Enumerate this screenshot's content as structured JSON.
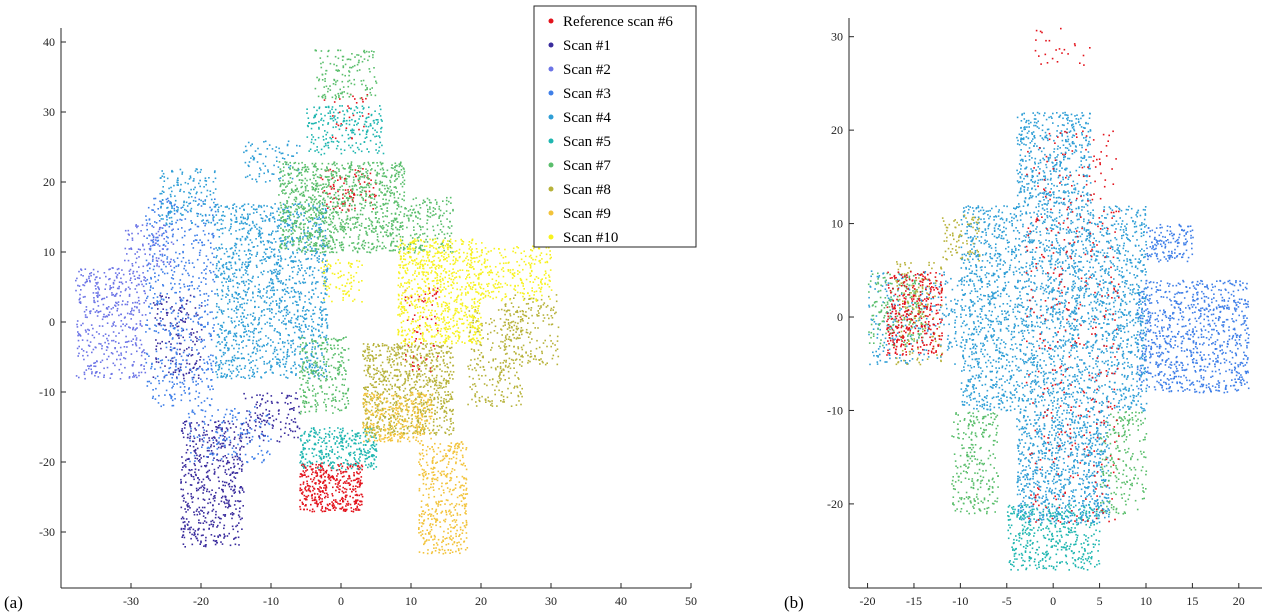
{
  "panels": {
    "a": {
      "label": "(a)"
    },
    "b": {
      "label": "(b)"
    }
  },
  "colors": {
    "reference": "#e3131c",
    "scan1": "#3a2c9d",
    "scan2": "#6c74e6",
    "scan3": "#3f7fe8",
    "scan4": "#2f9ed6",
    "scan5": "#1fb6b0",
    "scan7": "#5abe6c",
    "scan8": "#b7b23a",
    "scan9": "#f2c33a",
    "scan10": "#f7f21e"
  },
  "chart_data": [
    {
      "type": "scatter",
      "panel": "(a)",
      "title": "",
      "xlabel": "",
      "ylabel": "",
      "xlim": [
        -40,
        50
      ],
      "ylim": [
        -38,
        42
      ],
      "xticks": [
        -30,
        -20,
        -10,
        0,
        10,
        20,
        30,
        40,
        50
      ],
      "yticks": [
        -30,
        -20,
        -10,
        0,
        10,
        20,
        30,
        40
      ],
      "legend_position": "top-right",
      "legend": [
        "Reference scan #6",
        "Scan #1",
        "Scan #2",
        "Scan #3",
        "Scan #4",
        "Scan #5",
        "Scan #7",
        "Scan #8",
        "Scan #9",
        "Scan #10"
      ],
      "series": [
        {
          "name": "Reference scan #6",
          "color_key": "reference",
          "clusters": [
            {
              "x": [
                -6,
                3
              ],
              "y": [
                -27,
                -20
              ],
              "n": 420
            },
            {
              "x": [
                -3,
                5
              ],
              "y": [
                16,
                22
              ],
              "n": 90
            },
            {
              "x": [
                9,
                14
              ],
              "y": [
                -7,
                5
              ],
              "n": 70
            },
            {
              "x": [
                -3,
                4
              ],
              "y": [
                26,
                33
              ],
              "n": 30
            }
          ]
        },
        {
          "name": "Scan #1",
          "color_key": "scan1",
          "clusters": [
            {
              "x": [
                -23,
                -14
              ],
              "y": [
                -32,
                -14
              ],
              "n": 520
            },
            {
              "x": [
                -14,
                -6
              ],
              "y": [
                -17,
                -10
              ],
              "n": 120
            },
            {
              "x": [
                -27,
                -20
              ],
              "y": [
                -8,
                4
              ],
              "n": 160
            }
          ]
        },
        {
          "name": "Scan #2",
          "color_key": "scan2",
          "clusters": [
            {
              "x": [
                -38,
                -28
              ],
              "y": [
                -8,
                8
              ],
              "n": 420
            },
            {
              "x": [
                -31,
                -24
              ],
              "y": [
                8,
                14
              ],
              "n": 100
            }
          ]
        },
        {
          "name": "Scan #3",
          "color_key": "scan3",
          "clusters": [
            {
              "x": [
                -28,
                -18
              ],
              "y": [
                -12,
                18
              ],
              "n": 560
            },
            {
              "x": [
                -22,
                -10
              ],
              "y": [
                -20,
                -12
              ],
              "n": 140
            }
          ]
        },
        {
          "name": "Scan #4",
          "color_key": "scan4",
          "clusters": [
            {
              "x": [
                -18,
                -2
              ],
              "y": [
                -8,
                17
              ],
              "n": 1400
            },
            {
              "x": [
                -26,
                -18
              ],
              "y": [
                14,
                22
              ],
              "n": 160
            },
            {
              "x": [
                -14,
                -6
              ],
              "y": [
                20,
                26
              ],
              "n": 80
            }
          ]
        },
        {
          "name": "Scan #5",
          "color_key": "scan5",
          "clusters": [
            {
              "x": [
                -6,
                5
              ],
              "y": [
                -21,
                -15
              ],
              "n": 330
            },
            {
              "x": [
                -5,
                6
              ],
              "y": [
                24,
                31
              ],
              "n": 220
            }
          ]
        },
        {
          "name": "Scan #7",
          "color_key": "scan7",
          "clusters": [
            {
              "x": [
                -9,
                9
              ],
              "y": [
                10,
                23
              ],
              "n": 1100
            },
            {
              "x": [
                -4,
                5
              ],
              "y": [
                32,
                39
              ],
              "n": 140
            },
            {
              "x": [
                -6,
                1
              ],
              "y": [
                -13,
                -2
              ],
              "n": 260
            },
            {
              "x": [
                9,
                16
              ],
              "y": [
                10,
                18
              ],
              "n": 160
            }
          ]
        },
        {
          "name": "Scan #8",
          "color_key": "scan8",
          "clusters": [
            {
              "x": [
                3,
                16
              ],
              "y": [
                -16,
                -3
              ],
              "n": 820
            },
            {
              "x": [
                18,
                26
              ],
              "y": [
                -12,
                2
              ],
              "n": 240
            },
            {
              "x": [
                23,
                31
              ],
              "y": [
                -6,
                4
              ],
              "n": 180
            }
          ]
        },
        {
          "name": "Scan #9",
          "color_key": "scan9",
          "clusters": [
            {
              "x": [
                3,
                13
              ],
              "y": [
                -17,
                -10
              ],
              "n": 320
            },
            {
              "x": [
                11,
                18
              ],
              "y": [
                -33,
                -17
              ],
              "n": 420
            }
          ]
        },
        {
          "name": "Scan #10",
          "color_key": "scan10",
          "clusters": [
            {
              "x": [
                8,
                20
              ],
              "y": [
                -3,
                12
              ],
              "n": 820
            },
            {
              "x": [
                20,
                30
              ],
              "y": [
                3,
                11
              ],
              "n": 220
            },
            {
              "x": [
                -3,
                3
              ],
              "y": [
                3,
                9
              ],
              "n": 80
            }
          ]
        }
      ]
    },
    {
      "type": "scatter",
      "panel": "(b)",
      "title": "",
      "xlabel": "",
      "ylabel": "",
      "xlim": [
        -22,
        22.5
      ],
      "ylim": [
        -29,
        32
      ],
      "xticks": [
        -20,
        -15,
        -10,
        -5,
        0,
        5,
        10,
        15,
        20
      ],
      "yticks": [
        -20,
        -10,
        0,
        10,
        20,
        30
      ],
      "series": [
        {
          "name": "Scan #3",
          "color_key": "scan3",
          "clusters": [
            {
              "x": [
                9,
                21
              ],
              "y": [
                -8,
                4
              ],
              "n": 900
            },
            {
              "x": [
                10,
                15
              ],
              "y": [
                6,
                10
              ],
              "n": 140
            }
          ]
        },
        {
          "name": "Scan #4",
          "color_key": "scan4",
          "clusters": [
            {
              "x": [
                -10,
                10
              ],
              "y": [
                -10,
                12
              ],
              "n": 2600
            },
            {
              "x": [
                -4,
                6
              ],
              "y": [
                -22,
                -10
              ],
              "n": 900
            },
            {
              "x": [
                -4,
                4
              ],
              "y": [
                12,
                22
              ],
              "n": 500
            },
            {
              "x": [
                -20,
                -10
              ],
              "y": [
                -5,
                5
              ],
              "n": 260
            }
          ]
        },
        {
          "name": "Scan #5",
          "color_key": "scan5",
          "clusters": [
            {
              "x": [
                -5,
                5
              ],
              "y": [
                -27,
                -20
              ],
              "n": 420
            }
          ]
        },
        {
          "name": "Scan #7",
          "color_key": "scan7",
          "clusters": [
            {
              "x": [
                -11,
                -6
              ],
              "y": [
                -21,
                -10
              ],
              "n": 260
            },
            {
              "x": [
                5,
                10
              ],
              "y": [
                -21,
                -10
              ],
              "n": 200
            },
            {
              "x": [
                -20,
                -14
              ],
              "y": [
                -3,
                5
              ],
              "n": 180
            }
          ]
        },
        {
          "name": "Scan #8",
          "color_key": "scan8",
          "clusters": [
            {
              "x": [
                -17,
                -12
              ],
              "y": [
                -5,
                6
              ],
              "n": 150
            },
            {
              "x": [
                -12,
                -8
              ],
              "y": [
                6,
                11
              ],
              "n": 80
            }
          ]
        },
        {
          "name": "Reference scan #6",
          "color_key": "reference",
          "clusters": [
            {
              "x": [
                -18,
                -12
              ],
              "y": [
                -4,
                5
              ],
              "n": 340
            },
            {
              "x": [
                -3,
                7
              ],
              "y": [
                -22,
                20
              ],
              "n": 380
            },
            {
              "x": [
                -2,
                4
              ],
              "y": [
                27,
                31
              ],
              "n": 25
            }
          ]
        }
      ]
    }
  ]
}
